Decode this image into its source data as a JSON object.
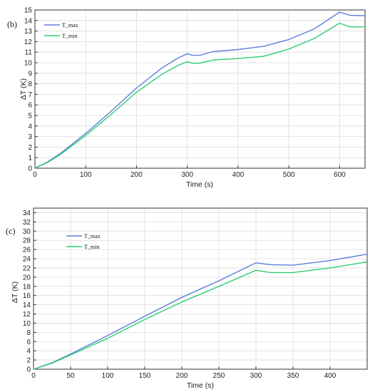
{
  "chart_data": [
    {
      "type": "line",
      "panel_label": "(b)",
      "xlabel": "Time (s)",
      "ylabel": "ΔT (K)",
      "xlim": [
        0,
        650
      ],
      "ylim": [
        0,
        15
      ],
      "xticks": [
        0,
        100,
        200,
        300,
        400,
        500,
        600
      ],
      "yticks": [
        0,
        1,
        2,
        3,
        4,
        5,
        6,
        7,
        8,
        9,
        10,
        11,
        12,
        13,
        14,
        15
      ],
      "grid": true,
      "legend_position": "top-left",
      "series": [
        {
          "name": "T_max",
          "color": "#5b7fdb",
          "x": [
            0,
            25,
            50,
            100,
            150,
            200,
            250,
            280,
            300,
            310,
            325,
            350,
            400,
            450,
            500,
            550,
            600,
            620,
            650
          ],
          "y": [
            0,
            0.6,
            1.4,
            3.3,
            5.4,
            7.6,
            9.5,
            10.4,
            10.85,
            10.7,
            10.7,
            11.05,
            11.25,
            11.55,
            12.2,
            13.2,
            14.8,
            14.5,
            14.45
          ]
        },
        {
          "name": "T_min",
          "color": "#2ecc71",
          "x": [
            0,
            25,
            50,
            100,
            150,
            200,
            250,
            280,
            300,
            310,
            325,
            350,
            400,
            450,
            500,
            550,
            600,
            620,
            650
          ],
          "y": [
            0,
            0.55,
            1.3,
            3.1,
            5.1,
            7.2,
            8.9,
            9.7,
            10.1,
            9.95,
            9.95,
            10.25,
            10.4,
            10.6,
            11.3,
            12.3,
            13.75,
            13.4,
            13.4
          ]
        }
      ]
    },
    {
      "type": "line",
      "panel_label": "(c)",
      "xlabel": "Time (s)",
      "ylabel": "ΔT (K)",
      "xlim": [
        0,
        450
      ],
      "ylim": [
        0,
        35
      ],
      "xticks": [
        0,
        50,
        100,
        150,
        200,
        250,
        300,
        350,
        400
      ],
      "yticks": [
        0,
        2,
        4,
        6,
        8,
        10,
        12,
        14,
        16,
        18,
        20,
        22,
        24,
        26,
        28,
        30,
        32,
        34
      ],
      "grid": true,
      "legend_position": "top-left",
      "series": [
        {
          "name": "T_max",
          "color": "#5b7fdb",
          "x": [
            0,
            25,
            50,
            100,
            150,
            200,
            250,
            300,
            320,
            350,
            400,
            450
          ],
          "y": [
            0,
            1.4,
            3.3,
            7.3,
            11.5,
            15.6,
            19.2,
            23.1,
            22.7,
            22.6,
            23.6,
            25.0
          ]
        },
        {
          "name": "T_min",
          "color": "#2ecc71",
          "x": [
            0,
            25,
            50,
            100,
            150,
            200,
            250,
            300,
            320,
            350,
            400,
            450
          ],
          "y": [
            0,
            1.3,
            3.1,
            6.7,
            10.8,
            14.6,
            18.0,
            21.5,
            21.0,
            21.0,
            22.0,
            23.3
          ]
        }
      ]
    }
  ]
}
